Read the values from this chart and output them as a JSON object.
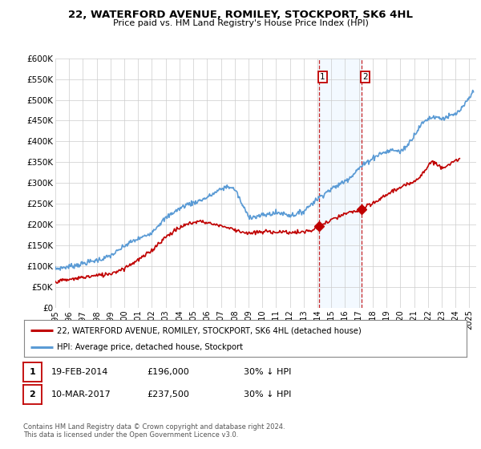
{
  "title": "22, WATERFORD AVENUE, ROMILEY, STOCKPORT, SK6 4HL",
  "subtitle": "Price paid vs. HM Land Registry's House Price Index (HPI)",
  "ylabel_ticks": [
    "£0",
    "£50K",
    "£100K",
    "£150K",
    "£200K",
    "£250K",
    "£300K",
    "£350K",
    "£400K",
    "£450K",
    "£500K",
    "£550K",
    "£600K"
  ],
  "ylim": [
    0,
    600000
  ],
  "xlim_start": 1995.0,
  "xlim_end": 2025.5,
  "hpi_color": "#5b9bd5",
  "price_color": "#c00000",
  "point1_x": 2014.12,
  "point1_y": 196000,
  "point2_x": 2017.19,
  "point2_y": 237500,
  "shade_color": "#ddeeff",
  "legend_label1": "22, WATERFORD AVENUE, ROMILEY, STOCKPORT, SK6 4HL (detached house)",
  "legend_label2": "HPI: Average price, detached house, Stockport",
  "table_row1": [
    "1",
    "19-FEB-2014",
    "£196,000",
    "30% ↓ HPI"
  ],
  "table_row2": [
    "2",
    "10-MAR-2017",
    "£237,500",
    "30% ↓ HPI"
  ],
  "footnote": "Contains HM Land Registry data © Crown copyright and database right 2024.\nThis data is licensed under the Open Government Licence v3.0.",
  "bg_color": "#ffffff",
  "grid_color": "#cccccc",
  "hpi_years": [
    1995.0,
    1995.5,
    1996.0,
    1996.5,
    1997.0,
    1997.5,
    1998.0,
    1998.5,
    1999.0,
    1999.5,
    2000.0,
    2000.5,
    2001.0,
    2001.5,
    2002.0,
    2002.5,
    2003.0,
    2003.5,
    2004.0,
    2004.5,
    2005.0,
    2005.5,
    2006.0,
    2006.5,
    2007.0,
    2007.5,
    2008.0,
    2008.25,
    2008.5,
    2008.75,
    2009.0,
    2009.5,
    2010.0,
    2010.5,
    2011.0,
    2011.5,
    2012.0,
    2012.5,
    2013.0,
    2013.5,
    2014.0,
    2014.5,
    2015.0,
    2015.5,
    2016.0,
    2016.5,
    2017.0,
    2017.5,
    2018.0,
    2018.5,
    2019.0,
    2019.5,
    2020.0,
    2020.5,
    2021.0,
    2021.5,
    2022.0,
    2022.5,
    2023.0,
    2023.5,
    2024.0,
    2024.5,
    2025.0,
    2025.3
  ],
  "hpi_vals": [
    93000,
    96000,
    99000,
    102000,
    106000,
    110000,
    114000,
    118000,
    125000,
    135000,
    148000,
    158000,
    165000,
    172000,
    182000,
    200000,
    215000,
    228000,
    238000,
    248000,
    252000,
    258000,
    265000,
    275000,
    285000,
    292000,
    285000,
    270000,
    250000,
    235000,
    220000,
    218000,
    222000,
    225000,
    228000,
    227000,
    222000,
    225000,
    232000,
    248000,
    262000,
    275000,
    285000,
    295000,
    305000,
    318000,
    335000,
    348000,
    360000,
    370000,
    375000,
    380000,
    375000,
    390000,
    415000,
    440000,
    455000,
    460000,
    455000,
    460000,
    465000,
    480000,
    505000,
    520000
  ],
  "red_years": [
    1995.0,
    1995.5,
    1996.0,
    1996.5,
    1997.0,
    1997.5,
    1998.0,
    1998.5,
    1999.0,
    1999.5,
    2000.0,
    2000.5,
    2001.0,
    2001.5,
    2002.0,
    2002.5,
    2003.0,
    2003.5,
    2004.0,
    2004.5,
    2005.0,
    2005.5,
    2006.0,
    2006.5,
    2007.0,
    2007.5,
    2008.0,
    2008.5,
    2009.0,
    2009.5,
    2010.0,
    2010.5,
    2011.0,
    2011.5,
    2012.0,
    2012.5,
    2013.0,
    2013.5,
    2014.0,
    2014.12,
    2014.5,
    2015.0,
    2015.5,
    2016.0,
    2016.5,
    2017.0,
    2017.19,
    2017.5,
    2018.0,
    2018.5,
    2019.0,
    2019.5,
    2020.0,
    2020.5,
    2021.0,
    2021.5,
    2022.0,
    2022.25,
    2022.5,
    2022.75,
    2023.0,
    2023.5,
    2024.0,
    2024.3
  ],
  "red_vals": [
    63000,
    65000,
    67000,
    70000,
    73000,
    75000,
    77000,
    79000,
    82000,
    88000,
    95000,
    105000,
    115000,
    125000,
    138000,
    155000,
    170000,
    182000,
    192000,
    200000,
    205000,
    208000,
    205000,
    200000,
    198000,
    192000,
    188000,
    183000,
    178000,
    180000,
    182000,
    183000,
    182000,
    182000,
    181000,
    181000,
    182000,
    185000,
    190000,
    196000,
    202000,
    210000,
    218000,
    225000,
    230000,
    234000,
    237500,
    242000,
    250000,
    260000,
    272000,
    282000,
    288000,
    295000,
    305000,
    318000,
    340000,
    352000,
    348000,
    342000,
    338000,
    345000,
    352000,
    355000
  ]
}
